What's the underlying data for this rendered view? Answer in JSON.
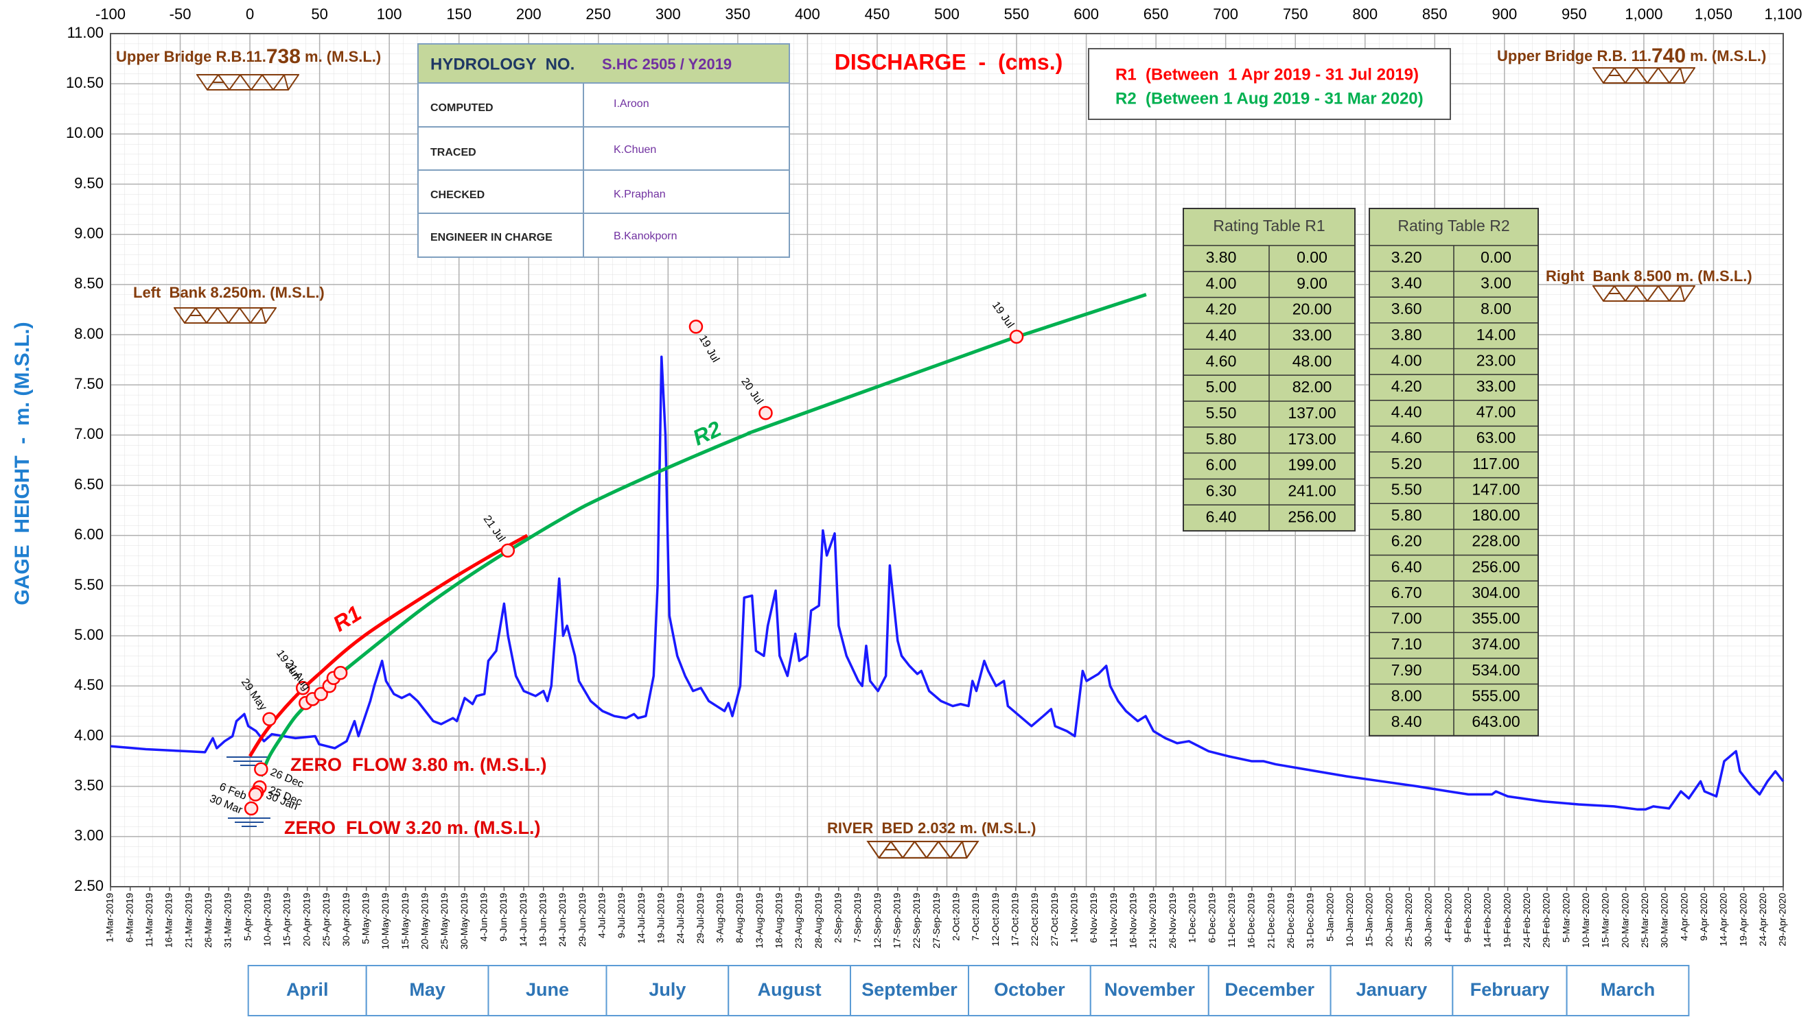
{
  "chart_data": {
    "type": "line",
    "title": "DISCHARGE  -  (cms.)",
    "ylabel": "GAGE  HEIGHT  -  m. (M.S.L.)",
    "xlim": [
      -100,
      1100
    ],
    "xticks": [
      -100,
      -50,
      0,
      50,
      100,
      150,
      200,
      250,
      300,
      350,
      400,
      450,
      500,
      550,
      600,
      650,
      700,
      750,
      800,
      850,
      900,
      950,
      {
        "value": 1000,
        "label": "1,000"
      },
      {
        "value": 1050,
        "label": "1,050"
      },
      {
        "value": 1100,
        "label": "1,100"
      }
    ],
    "ylim": [
      2.5,
      11
    ],
    "yticks": [
      {
        "value": 2.5,
        "label": "2.50"
      },
      {
        "value": 3,
        "label": "3.00"
      },
      {
        "value": 3.5,
        "label": "3.50"
      },
      {
        "value": 4,
        "label": "4.00"
      },
      {
        "value": 4.5,
        "label": "4.50"
      },
      {
        "value": 5,
        "label": "5.00"
      },
      {
        "value": 5.5,
        "label": "5.50"
      },
      {
        "value": 6,
        "label": "6.00"
      },
      {
        "value": 6.5,
        "label": "6.50"
      },
      {
        "value": 7,
        "label": "7.00"
      },
      {
        "value": 7.5,
        "label": "7.50"
      },
      {
        "value": 8,
        "label": "8.00"
      },
      {
        "value": 8.5,
        "label": "8.50"
      },
      {
        "value": 9,
        "label": "9.00"
      },
      {
        "value": 9.5,
        "label": "9.50"
      },
      {
        "value": 10,
        "label": "10.00"
      },
      {
        "value": 10.5,
        "label": "10.50"
      },
      {
        "value": 11,
        "label": "11.00"
      }
    ],
    "grid": true,
    "x2ticks": [
      "1-Mar-2019",
      "6-Mar-2019",
      "11-Mar-2019",
      "16-Mar-2019",
      "21-Mar-2019",
      "26-Mar-2019",
      "31-Mar-2019",
      "5-Apr-2019",
      "10-Apr-2019",
      "15-Apr-2019",
      "20-Apr-2019",
      "25-Apr-2019",
      "30-Apr-2019",
      "5-May-2019",
      "10-May-2019",
      "15-May-2019",
      "20-May-2019",
      "25-May-2019",
      "30-May-2019",
      "4-Jun-2019",
      "9-Jun-2019",
      "14-Jun-2019",
      "19-Jun-2019",
      "24-Jun-2019",
      "29-Jun-2019",
      "4-Jul-2019",
      "9-Jul-2019",
      "14-Jul-2019",
      "19-Jul-2019",
      "24-Jul-2019",
      "29-Jul-2019",
      "3-Aug-2019",
      "8-Aug-2019",
      "13-Aug-2019",
      "18-Aug-2019",
      "23-Aug-2019",
      "28-Aug-2019",
      "2-Sep-2019",
      "7-Sep-2019",
      "12-Sep-2019",
      "17-Sep-2019",
      "22-Sep-2019",
      "27-Sep-2019",
      "2-Oct-2019",
      "7-Oct-2019",
      "12-Oct-2019",
      "17-Oct-2019",
      "22-Oct-2019",
      "27-Oct-2019",
      "1-Nov-2019",
      "6-Nov-2019",
      "11-Nov-2019",
      "16-Nov-2019",
      "21-Nov-2019",
      "26-Nov-2019",
      "1-Dec-2019",
      "6-Dec-2019",
      "11-Dec-2019",
      "16-Dec-2019",
      "21-Dec-2019",
      "26-Dec-2019",
      "31-Dec-2019",
      "5-Jan-2020",
      "10-Jan-2020",
      "15-Jan-2020",
      "20-Jan-2020",
      "25-Jan-2020",
      "30-Jan-2020",
      "4-Feb-2020",
      "9-Feb-2020",
      "14-Feb-2020",
      "19-Feb-2020",
      "24-Feb-2020",
      "29-Feb-2020",
      "5-Mar-2020",
      "10-Mar-2020",
      "15-Mar-2020",
      "20-Mar-2020",
      "25-Mar-2020",
      "30-Mar-2020",
      "4-Apr-2020",
      "9-Apr-2020",
      "14-Apr-2020",
      "19-Apr-2020",
      "24-Apr-2020",
      "29-Apr-2020"
    ],
    "months": [
      "April",
      "May",
      "June",
      "July",
      "August",
      "September",
      "October",
      "November",
      "December",
      "January",
      "February",
      "March"
    ],
    "series": [
      {
        "name": "R1",
        "color": "#ff0000",
        "x": [
          0,
          9,
          20,
          33,
          48,
          82,
          137,
          173,
          199
        ],
        "values": [
          3.8,
          4.0,
          4.2,
          4.4,
          4.6,
          5.0,
          5.5,
          5.8,
          6.0
        ]
      },
      {
        "name": "R2",
        "color": "#00b050",
        "x": [
          8,
          14,
          23,
          33,
          47,
          63,
          117,
          147,
          180,
          228,
          256,
          304,
          355,
          374,
          534,
          555,
          643
        ],
        "values": [
          3.6,
          3.8,
          4.0,
          4.2,
          4.4,
          4.6,
          5.2,
          5.5,
          5.8,
          6.2,
          6.4,
          6.7,
          7.0,
          7.1,
          7.9,
          8.0,
          8.4
        ]
      },
      {
        "axis": "x2",
        "color": "#1a1aff",
        "x": [
          "1-Mar-2019",
          "10-Mar-2019",
          "20-Mar-2019",
          "25-Mar-2019",
          "27-Mar-2019",
          "28-Mar-2019",
          "30-Mar-2019",
          "1-Apr-2019",
          "2-Apr-2019",
          "4-Apr-2019",
          "5-Apr-2019",
          "7-Apr-2019",
          "9-Apr-2019",
          "11-Apr-2019",
          "17-Apr-2019",
          "22-Apr-2019",
          "23-Apr-2019",
          "27-Apr-2019",
          "30-Apr-2019",
          "2-May-2019",
          "3-May-2019",
          "6-May-2019",
          "7-May-2019",
          "9-May-2019",
          "10-May-2019",
          "12-May-2019",
          "14-May-2019",
          "16-May-2019",
          "18-May-2019",
          "20-May-2019",
          "22-May-2019",
          "24-May-2019",
          "27-May-2019",
          "28-May-2019",
          "30-May-2019",
          "1-Jun-2019",
          "2-Jun-2019",
          "4-Jun-2019",
          "5-Jun-2019",
          "7-Jun-2019",
          "9-Jun-2019",
          "10-Jun-2019",
          "12-Jun-2019",
          "14-Jun-2019",
          "17-Jun-2019",
          "19-Jun-2019",
          "20-Jun-2019",
          "21-Jun-2019",
          "23-Jun-2019",
          "24-Jun-2019",
          "25-Jun-2019",
          "27-Jun-2019",
          "28-Jun-2019",
          "1-Jul-2019",
          "4-Jul-2019",
          "7-Jul-2019",
          "10-Jul-2019",
          "12-Jul-2019",
          "13-Jul-2019",
          "15-Jul-2019",
          "17-Jul-2019",
          "18-Jul-2019",
          "19-Jul-2019",
          "20-Jul-2019",
          "21-Jul-2019",
          "23-Jul-2019",
          "25-Jul-2019",
          "27-Jul-2019",
          "29-Jul-2019",
          "31-Jul-2019",
          "2-Aug-2019",
          "4-Aug-2019",
          "5-Aug-2019",
          "6-Aug-2019",
          "8-Aug-2019",
          "9-Aug-2019",
          "11-Aug-2019",
          "12-Aug-2019",
          "14-Aug-2019",
          "15-Aug-2019",
          "17-Aug-2019",
          "18-Aug-2019",
          "20-Aug-2019",
          "22-Aug-2019",
          "23-Aug-2019",
          "25-Aug-2019",
          "26-Aug-2019",
          "28-Aug-2019",
          "29-Aug-2019",
          "30-Aug-2019",
          "1-Sep-2019",
          "2-Sep-2019",
          "4-Sep-2019",
          "7-Sep-2019",
          "8-Sep-2019",
          "9-Sep-2019",
          "10-Sep-2019",
          "12-Sep-2019",
          "14-Sep-2019",
          "15-Sep-2019",
          "17-Sep-2019",
          "18-Sep-2019",
          "20-Sep-2019",
          "22-Sep-2019",
          "23-Sep-2019",
          "25-Sep-2019",
          "28-Sep-2019",
          "1-Oct-2019",
          "3-Oct-2019",
          "5-Oct-2019",
          "6-Oct-2019",
          "7-Oct-2019",
          "9-Oct-2019",
          "10-Oct-2019",
          "12-Oct-2019",
          "14-Oct-2019",
          "15-Oct-2019",
          "18-Oct-2019",
          "21-Oct-2019",
          "24-Oct-2019",
          "26-Oct-2019",
          "27-Oct-2019",
          "30-Oct-2019",
          "1-Nov-2019",
          "3-Nov-2019",
          "4-Nov-2019",
          "7-Nov-2019",
          "9-Nov-2019",
          "10-Nov-2019",
          "12-Nov-2019",
          "14-Nov-2019",
          "17-Nov-2019",
          "19-Nov-2019",
          "21-Nov-2019",
          "24-Nov-2019",
          "27-Nov-2019",
          "30-Nov-2019",
          "5-Dec-2019",
          "10-Dec-2019",
          "16-Dec-2019",
          "19-Dec-2019",
          "22-Dec-2019",
          "31-Dec-2019",
          "9-Jan-2020",
          "18-Jan-2020",
          "27-Jan-2020",
          "4-Feb-2020",
          "9-Feb-2020",
          "15-Feb-2020",
          "16-Feb-2020",
          "19-Feb-2020",
          "28-Feb-2020",
          "8-Mar-2020",
          "17-Mar-2020",
          "23-Mar-2020",
          "25-Mar-2020",
          "27-Mar-2020",
          "31-Mar-2020",
          "3-Apr-2020",
          "5-Apr-2020",
          "8-Apr-2020",
          "9-Apr-2020",
          "12-Apr-2020",
          "14-Apr-2020",
          "17-Apr-2020",
          "18-Apr-2020",
          "21-Apr-2020",
          "23-Apr-2020",
          "25-Apr-2020",
          "27-Apr-2020",
          "29-Apr-2020"
        ],
        "values": [
          3.9,
          3.87,
          3.85,
          3.84,
          3.98,
          3.88,
          3.95,
          4.0,
          4.15,
          4.22,
          4.1,
          4.05,
          3.95,
          4.02,
          3.98,
          4.0,
          3.92,
          3.88,
          3.95,
          4.15,
          4.0,
          4.35,
          4.5,
          4.75,
          4.55,
          4.42,
          4.38,
          4.42,
          4.35,
          4.25,
          4.15,
          4.12,
          4.18,
          4.15,
          4.38,
          4.32,
          4.4,
          4.42,
          4.75,
          4.85,
          5.32,
          5.0,
          4.6,
          4.45,
          4.4,
          4.45,
          4.35,
          4.5,
          5.57,
          5.0,
          5.1,
          4.8,
          4.55,
          4.35,
          4.25,
          4.2,
          4.18,
          4.22,
          4.18,
          4.2,
          4.6,
          5.5,
          7.78,
          7.0,
          5.2,
          4.8,
          4.6,
          4.45,
          4.48,
          4.35,
          4.3,
          4.25,
          4.33,
          4.2,
          4.5,
          5.38,
          5.4,
          4.85,
          4.8,
          5.1,
          5.45,
          4.8,
          4.6,
          5.02,
          4.75,
          4.8,
          5.25,
          5.3,
          6.05,
          5.8,
          6.02,
          5.1,
          4.8,
          4.55,
          4.5,
          4.9,
          4.55,
          4.45,
          4.6,
          5.7,
          4.95,
          4.8,
          4.7,
          4.62,
          4.65,
          4.45,
          4.35,
          4.3,
          4.32,
          4.3,
          4.55,
          4.45,
          4.75,
          4.65,
          4.5,
          4.55,
          4.3,
          4.2,
          4.1,
          4.2,
          4.27,
          4.1,
          4.05,
          4.0,
          4.65,
          4.55,
          4.62,
          4.7,
          4.5,
          4.35,
          4.25,
          4.15,
          4.2,
          4.05,
          3.98,
          3.93,
          3.95,
          3.85,
          3.8,
          3.75,
          3.75,
          3.72,
          3.66,
          3.6,
          3.55,
          3.5,
          3.45,
          3.42,
          3.42,
          3.45,
          3.4,
          3.35,
          3.32,
          3.3,
          3.27,
          3.27,
          3.3,
          3.28,
          3.45,
          3.38,
          3.55,
          3.45,
          3.4,
          3.75,
          3.85,
          3.65,
          3.5,
          3.42,
          3.55,
          3.65,
          3.55
        ]
      }
    ],
    "measurements": {
      "color": "#ff0000",
      "x": [
        14,
        38,
        40,
        45,
        51,
        57,
        60,
        65,
        185,
        320,
        370,
        550,
        8,
        7,
        5,
        4,
        1
      ],
      "values": [
        4.17,
        4.48,
        4.33,
        4.37,
        4.42,
        4.5,
        4.58,
        4.63,
        5.85,
        8.08,
        7.22,
        7.98,
        3.67,
        3.49,
        3.44,
        3.42,
        3.28
      ],
      "labels": [
        "29 May",
        "19 Jun",
        null,
        "21 Aug",
        null,
        null,
        null,
        null,
        "21 Jul",
        "19 Jul",
        "20 Jul",
        "19 Jul",
        "26 Dec",
        "25 Dec",
        "30 Jan",
        "6 Feb",
        "30 Mar"
      ]
    },
    "legend": [
      "R1  (Between  1 Apr 2019 - 31 Jul 2019)",
      "R2  (Between 1 Aug 2019 - 31 Mar 2020)"
    ],
    "annotations": {
      "upper_bridge_left": [
        "Upper Bridge R.B.11.",
        "738",
        " m. (M.S.L.)"
      ],
      "upper_bridge_right": [
        "Upper Bridge R.B. 11.",
        "740",
        " m. (M.S.L.)"
      ],
      "left_bank": "Left  Bank 8.250m. (M.S.L.)",
      "right_bank": "Right  Bank 8.500 m. (M.S.L.)",
      "zero_flow_r1": "ZERO  FLOW 3.80 m. (M.S.L.)",
      "zero_flow_r2": "ZERO  FLOW 3.20 m. (M.S.L.)",
      "river_bed": "RIVER  BED 2.032 m. (M.S.L.)"
    }
  },
  "info": {
    "header": [
      "HYDROLOGY  NO.",
      "S.HC 2505 / Y2019"
    ],
    "rows": [
      [
        "COMPUTED",
        "I.Aroon"
      ],
      [
        "TRACED",
        "K.Chuen"
      ],
      [
        "CHECKED",
        "K.Praphan"
      ],
      [
        "ENGINEER IN CHARGE",
        "B.Kanokporn"
      ]
    ]
  },
  "rating_tables": [
    {
      "title": "Rating Table R1",
      "rows": [
        [
          "3.80",
          "0.00"
        ],
        [
          "4.00",
          "9.00"
        ],
        [
          "4.20",
          "20.00"
        ],
        [
          "4.40",
          "33.00"
        ],
        [
          "4.60",
          "48.00"
        ],
        [
          "5.00",
          "82.00"
        ],
        [
          "5.50",
          "137.00"
        ],
        [
          "5.80",
          "173.00"
        ],
        [
          "6.00",
          "199.00"
        ],
        [
          "6.30",
          "241.00"
        ],
        [
          "6.40",
          "256.00"
        ]
      ]
    },
    {
      "title": "Rating Table R2",
      "rows": [
        [
          "3.20",
          "0.00"
        ],
        [
          "3.40",
          "3.00"
        ],
        [
          "3.60",
          "8.00"
        ],
        [
          "3.80",
          "14.00"
        ],
        [
          "4.00",
          "23.00"
        ],
        [
          "4.20",
          "33.00"
        ],
        [
          "4.40",
          "47.00"
        ],
        [
          "4.60",
          "63.00"
        ],
        [
          "5.20",
          "117.00"
        ],
        [
          "5.50",
          "147.00"
        ],
        [
          "5.80",
          "180.00"
        ],
        [
          "6.20",
          "228.00"
        ],
        [
          "6.40",
          "256.00"
        ],
        [
          "6.70",
          "304.00"
        ],
        [
          "7.00",
          "355.00"
        ],
        [
          "7.10",
          "374.00"
        ],
        [
          "7.90",
          "534.00"
        ],
        [
          "8.00",
          "555.00"
        ],
        [
          "8.40",
          "643.00"
        ]
      ]
    }
  ]
}
